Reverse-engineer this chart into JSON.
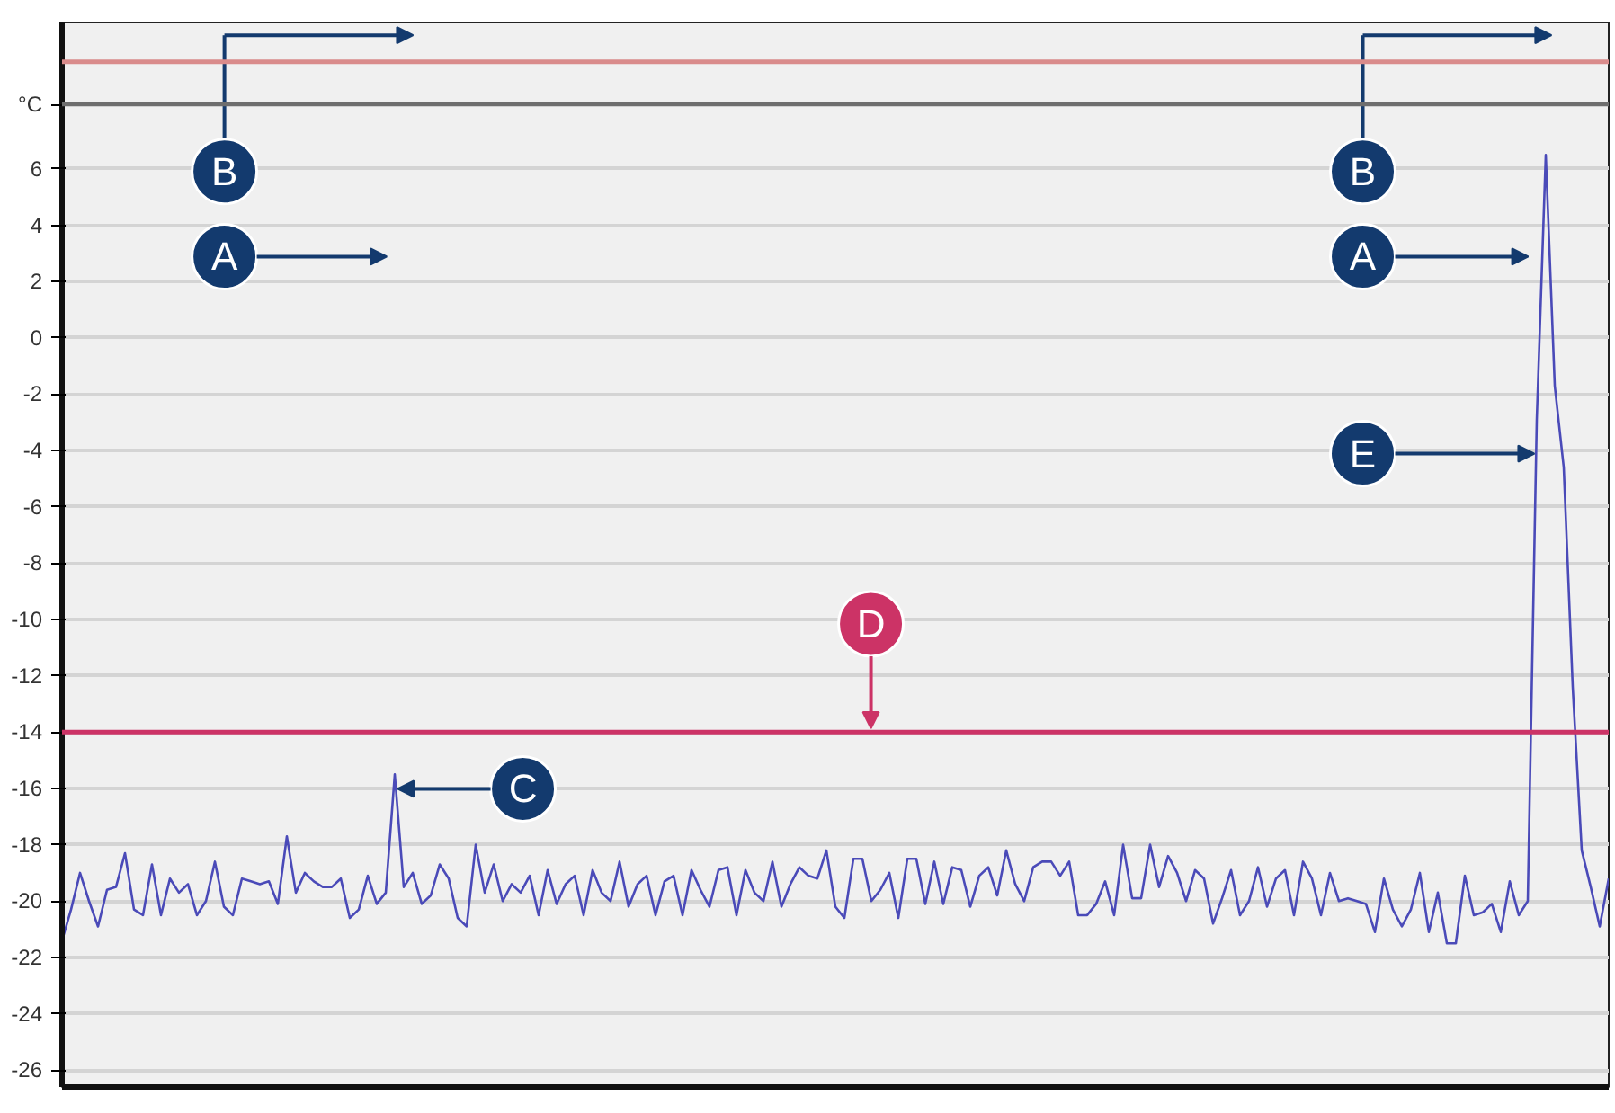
{
  "chart_data": {
    "type": "line",
    "ylabel": "°C",
    "ylim": [
      -26.6,
      11.2
    ],
    "yticks": [
      -26,
      -24,
      -22,
      -20,
      -18,
      -16,
      -14,
      -12,
      -10,
      -8,
      -6,
      -4,
      -2,
      0,
      2,
      4,
      6
    ],
    "grid": "y",
    "tick_labels": "y",
    "categories": [
      null,
      null,
      null,
      null,
      null,
      null,
      null,
      null,
      null,
      null,
      null,
      null,
      null,
      null,
      null,
      null,
      null,
      null,
      null,
      null,
      null,
      null,
      null,
      null,
      null,
      null,
      null,
      null,
      null,
      null,
      null,
      null,
      null,
      null,
      null,
      null,
      null,
      null,
      null,
      null,
      null,
      null,
      null,
      null,
      null,
      null,
      null,
      null,
      null,
      null,
      null,
      null,
      null,
      null,
      null,
      null,
      null,
      null,
      null,
      null,
      null,
      null,
      null,
      null,
      null,
      null,
      null,
      null,
      null,
      null,
      null,
      null,
      null,
      null,
      null,
      null,
      null,
      null,
      null,
      null,
      null,
      null,
      null,
      null,
      null,
      null,
      null,
      null,
      null,
      null,
      null,
      null,
      null,
      null,
      null,
      null,
      null,
      null,
      null,
      null,
      null,
      null,
      null,
      null,
      null,
      null,
      null,
      null,
      null,
      null,
      null,
      null,
      null,
      null,
      null,
      null,
      null,
      null,
      null,
      null,
      null,
      null,
      null,
      null,
      null,
      null,
      null,
      null,
      null,
      null,
      null,
      null,
      null,
      null,
      null,
      null,
      null,
      null,
      null,
      null,
      null,
      null,
      null,
      null,
      null,
      null,
      null,
      null,
      null,
      null,
      null,
      null,
      null,
      null,
      null,
      null,
      null,
      null,
      null,
      null,
      null,
      null,
      null,
      null,
      null,
      null,
      null,
      null,
      null,
      null,
      null,
      null,
      null
    ],
    "series": [
      {
        "color": "#4a4ab8",
        "values": [
          -21.4,
          -20.3,
          -19.0,
          -20.0,
          -20.9,
          -19.6,
          -19.5,
          -18.3,
          -20.3,
          -20.5,
          -18.7,
          -20.5,
          -19.2,
          -19.7,
          -19.4,
          -20.5,
          -20.0,
          -18.6,
          -20.2,
          -20.5,
          -19.2,
          -19.3,
          -19.4,
          -19.3,
          -20.1,
          -17.7,
          -19.7,
          -19.0,
          -19.3,
          -19.5,
          -19.5,
          -19.2,
          -20.6,
          -20.3,
          -19.1,
          -20.1,
          -19.7,
          -15.5,
          -19.5,
          -19.0,
          -20.1,
          -19.8,
          -18.7,
          -19.2,
          -20.6,
          -20.9,
          -18.0,
          -19.7,
          -18.7,
          -20.0,
          -19.4,
          -19.7,
          -19.1,
          -20.5,
          -18.9,
          -20.1,
          -19.4,
          -19.1,
          -20.5,
          -18.9,
          -19.7,
          -20.0,
          -18.6,
          -20.2,
          -19.4,
          -19.1,
          -20.5,
          -19.3,
          -19.1,
          -20.5,
          -18.9,
          -19.6,
          -20.2,
          -18.9,
          -18.8,
          -20.5,
          -18.9,
          -19.7,
          -20.0,
          -18.6,
          -20.2,
          -19.4,
          -18.8,
          -19.1,
          -19.2,
          -18.2,
          -20.2,
          -20.6,
          -18.5,
          -18.5,
          -20.0,
          -19.6,
          -19.0,
          -20.6,
          -18.5,
          -18.5,
          -20.1,
          -18.6,
          -20.1,
          -18.8,
          -18.9,
          -20.2,
          -19.1,
          -18.8,
          -19.8,
          -18.2,
          -19.4,
          -20.0,
          -18.8,
          -18.6,
          -18.6,
          -19.1,
          -18.6,
          -20.5,
          -20.5,
          -20.1,
          -19.3,
          -20.5,
          -18.0,
          -19.9,
          -19.9,
          -18.0,
          -19.5,
          -18.4,
          -19.0,
          -20.0,
          -18.9,
          -19.2,
          -20.8,
          -19.9,
          -18.9,
          -20.5,
          -20.0,
          -18.8,
          -20.2,
          -19.2,
          -18.9,
          -20.5,
          -18.6,
          -19.2,
          -20.5,
          -19.0,
          -20.0,
          -19.9,
          -20.0,
          -20.1,
          -21.1,
          -19.2,
          -20.3,
          -20.9,
          -20.3,
          -19.0,
          -21.1,
          -19.7,
          -21.5,
          -21.5,
          -19.1,
          -20.5,
          -20.4,
          -20.1,
          -21.1,
          -19.3,
          -20.5,
          -20.0,
          -2.9,
          6.5,
          -1.7,
          -4.6,
          -12.4,
          -18.2,
          -19.5,
          -20.9,
          -19.2
        ]
      }
    ],
    "ref_lines": [
      {
        "axis": "y",
        "value": -14,
        "color": "#cc3366",
        "line_style": "solid"
      },
      {
        "axis": "y",
        "value": 9.8,
        "color": "#d98b8b",
        "line_style": "solid"
      },
      {
        "axis": "y",
        "value": 8.3,
        "color": "#6e6e6e",
        "line_style": "solid"
      }
    ],
    "annotations": [
      "B",
      "A",
      "C",
      "D",
      "B",
      "A",
      "E"
    ]
  }
}
